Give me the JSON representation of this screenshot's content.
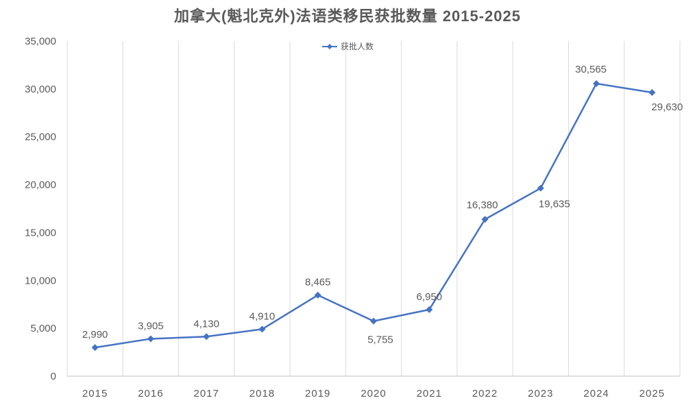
{
  "chart_data": {
    "type": "line",
    "title": "加拿大(魁北克外)法语类移民获批数量 2015-2025",
    "xlabel": "",
    "ylabel": "",
    "categories": [
      "2015",
      "2016",
      "2017",
      "2018",
      "2019",
      "2020",
      "2021",
      "2022",
      "2023",
      "2024",
      "2025"
    ],
    "series": [
      {
        "name": "获批人数",
        "values": [
          2990,
          3905,
          4130,
          4910,
          8465,
          5755,
          6950,
          16380,
          19635,
          30565,
          29630
        ],
        "data_labels": [
          "2,990",
          "3,905",
          "4,130",
          "4,910",
          "8,465",
          "5,755",
          "6,950",
          "16,380",
          "19,635",
          "30,565",
          "29,630"
        ]
      }
    ],
    "ylim": [
      0,
      35000
    ],
    "yticks": [
      0,
      5000,
      10000,
      15000,
      20000,
      25000,
      30000,
      35000
    ],
    "ytick_labels": [
      "0",
      "5,000",
      "10,000",
      "15,000",
      "20,000",
      "25,000",
      "30,000",
      "35,000"
    ],
    "grid": "vertical",
    "legend_position": "top-center",
    "colors": {
      "series": "#4472C4",
      "grid": "#d9d9d9",
      "text": "#595959"
    }
  }
}
